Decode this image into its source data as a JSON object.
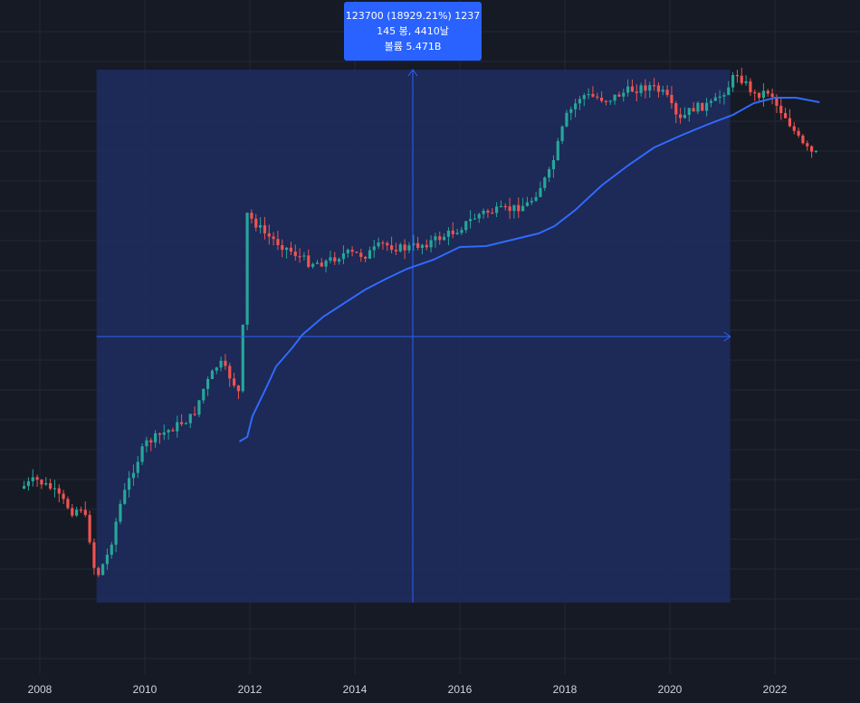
{
  "colors": {
    "background": "#161a25",
    "grid": "#232838",
    "up": "#26a69a",
    "down": "#ef5350",
    "ma": "#2f6bff",
    "measure_fill": "#1e2d5f",
    "accent": "#2962ff"
  },
  "measure_tooltip": {
    "line1": "123700 (18929.21%) 1237",
    "line2": "145 봉, 4410날",
    "line3": "볼륨 5.471B"
  },
  "chart_data": {
    "type": "candlestick",
    "x_ticks": [
      "2008",
      "2010",
      "2012",
      "2014",
      "2016",
      "2018",
      "2020",
      "2022"
    ],
    "x_range": [
      2007.7,
      2022.9
    ],
    "price_scale": "log, unlabeled",
    "grid": true,
    "measurement": {
      "from": "2009-01",
      "to": "2021-03",
      "change_percent": 18929.21,
      "bars": 145,
      "days": 4410
    },
    "indicator": "moving average (blue line)"
  }
}
